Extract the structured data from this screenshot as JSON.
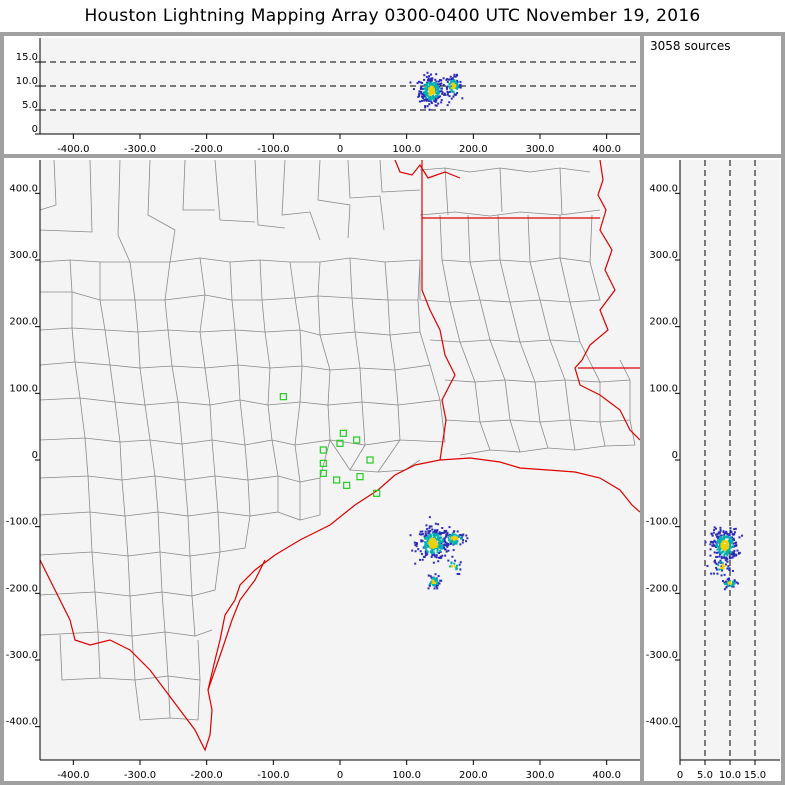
{
  "title": "Houston Lightning Mapping Array   0300-0400 UTC  November 19, 2016",
  "source_count_label": "3058 sources",
  "colors": {
    "frame": "#a0a0a0",
    "plot_bg": "#f4f4f4",
    "county_lines": "#8a8a8a",
    "coast_and_state_lines": "#dd0000",
    "stations": "#22cc22",
    "source_density_low": "#2b2bb8",
    "source_density_mid": "#00b0b0",
    "source_density_high": "#f0d000"
  },
  "chart_data": [
    {
      "type": "scatter",
      "panel": "altitude-vs-east-west",
      "xlim": [
        -450,
        450
      ],
      "ylim": [
        0,
        20
      ],
      "xticks": [
        -400,
        -300,
        -200,
        -100,
        0,
        100,
        200,
        300,
        400
      ],
      "yticks": [
        0,
        5,
        10,
        15
      ],
      "xtick_labels": [
        "-400.0",
        "-300.0",
        "-200.0",
        "-100.0",
        "0",
        "100.0",
        "200.0",
        "300.0",
        "400.0"
      ],
      "ytick_labels": [
        "0",
        "5.0",
        "10.0",
        "15.0"
      ],
      "reference_lines_y": [
        5,
        10,
        15
      ],
      "clusters": [
        {
          "x": 137,
          "y": 9,
          "sx": 9,
          "sy": 1.5,
          "n": 260
        },
        {
          "x": 170,
          "y": 10,
          "sx": 6,
          "sy": 1.0,
          "n": 90
        }
      ]
    },
    {
      "type": "scatter",
      "panel": "plan-view",
      "xlim": [
        -450,
        450
      ],
      "ylim": [
        -450,
        450
      ],
      "xticks": [
        -400,
        -300,
        -200,
        -100,
        0,
        100,
        200,
        300,
        400
      ],
      "yticks": [
        -400,
        -300,
        -200,
        -100,
        0,
        100,
        200,
        300,
        400
      ],
      "xtick_labels": [
        "-400.0",
        "-300.0",
        "-200.0",
        "-100.0",
        "0",
        "100.0",
        "200.0",
        "300.0",
        "400.0"
      ],
      "ytick_labels": [
        "-400.0",
        "-300.0",
        "-200.0",
        "-100.0",
        "0",
        "100.0",
        "200.0",
        "300.0",
        "400.0"
      ],
      "stations": [
        {
          "x": -85,
          "y": 95
        },
        {
          "x": -25,
          "y": 15
        },
        {
          "x": -25,
          "y": -5
        },
        {
          "x": -25,
          "y": -20
        },
        {
          "x": -5,
          "y": -30
        },
        {
          "x": 0,
          "y": 25
        },
        {
          "x": 5,
          "y": 40
        },
        {
          "x": 10,
          "y": -38
        },
        {
          "x": 25,
          "y": 30
        },
        {
          "x": 30,
          "y": -25
        },
        {
          "x": 45,
          "y": 0
        },
        {
          "x": 55,
          "y": -50
        }
      ],
      "clusters": [
        {
          "x": 140,
          "y": -125,
          "sx": 12,
          "sy": 12,
          "n": 280
        },
        {
          "x": 172,
          "y": -118,
          "sx": 8,
          "sy": 6,
          "n": 90
        },
        {
          "x": 140,
          "y": -183,
          "sx": 5,
          "sy": 5,
          "n": 50
        },
        {
          "x": 170,
          "y": -160,
          "sx": 6,
          "sy": 6,
          "n": 18
        }
      ]
    },
    {
      "type": "scatter",
      "panel": "north-south-vs-altitude",
      "xlim": [
        0,
        20
      ],
      "ylim": [
        -450,
        450
      ],
      "xticks": [
        0,
        5,
        10,
        15
      ],
      "yticks": [
        -400,
        -300,
        -200,
        -100,
        0,
        100,
        200,
        300,
        400
      ],
      "xtick_labels": [
        "0",
        "5.0",
        "10.0",
        "15.0"
      ],
      "ytick_labels": [
        "-400.0",
        "-300.0",
        "-200.0",
        "-100.0",
        "0",
        "100.0",
        "200.0",
        "300.0",
        "400.0"
      ],
      "reference_lines_x": [
        5,
        10,
        15
      ],
      "clusters": [
        {
          "x": 9,
          "y": -128,
          "sx": 1.3,
          "sy": 12,
          "n": 280
        },
        {
          "x": 8.5,
          "y": -160,
          "sx": 0.8,
          "sy": 6,
          "n": 30
        },
        {
          "x": 10,
          "y": -185,
          "sx": 0.8,
          "sy": 3,
          "n": 40
        }
      ]
    }
  ]
}
